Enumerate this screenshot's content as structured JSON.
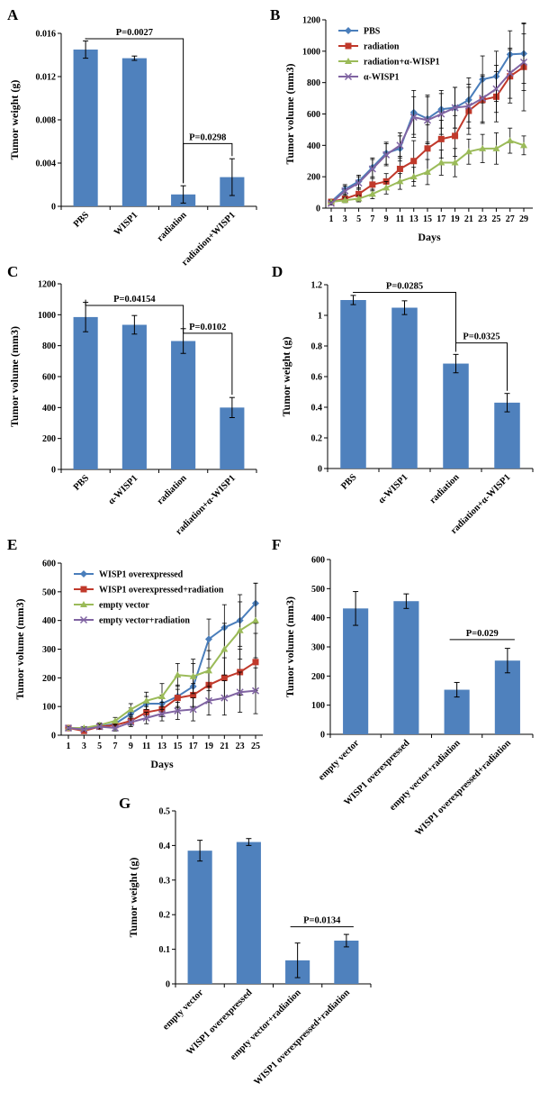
{
  "colors": {
    "bar": "#4f81bd",
    "blue": "#4a7ebb",
    "red": "#c0392b",
    "green": "#9bbb59",
    "purple": "#8064a2",
    "err": "#000000"
  },
  "chart_data": [
    {
      "id": "A",
      "type": "bar",
      "letter": "A",
      "ylabel": "Tumor weight (g)",
      "xlabel": "",
      "ylim": [
        0,
        0.016
      ],
      "yticks": [
        0,
        0.004,
        0.008,
        0.012,
        0.016
      ],
      "ytick_labels": [
        "0",
        "0.004",
        "0.008",
        "0.012",
        "0.016"
      ],
      "categories": [
        "PBS",
        "WISP1",
        "radiation",
        "radiation+WISP1"
      ],
      "values": [
        0.0145,
        0.0137,
        0.0011,
        0.0027
      ],
      "errors": [
        0.0008,
        0.0002,
        0.0008,
        0.0017
      ],
      "annotations": [
        {
          "label": "P=0.0027",
          "from": 0,
          "to": 2,
          "level": 0.0155
        },
        {
          "label": "P=0.0298",
          "from": 2,
          "to": 3,
          "level": 0.0058
        }
      ]
    },
    {
      "id": "B",
      "type": "line",
      "letter": "B",
      "ylabel": "Tumor volume (mm3)",
      "xlabel": "Days",
      "ylim": [
        0,
        1200
      ],
      "yticks": [
        0,
        200,
        400,
        600,
        800,
        1000,
        1200
      ],
      "ytick_labels": [
        "0",
        "200",
        "400",
        "600",
        "800",
        "1000",
        "1200"
      ],
      "x": [
        1,
        3,
        5,
        7,
        9,
        11,
        13,
        15,
        17,
        19,
        21,
        23,
        25,
        27,
        29
      ],
      "xtick_labels": [
        "1",
        "3",
        "5",
        "7",
        "9",
        "11",
        "13",
        "15",
        "17",
        "19",
        "21",
        "23",
        "25",
        "27",
        "29"
      ],
      "legend": [
        "PBS",
        "radiation",
        "radiation+α-WISP1",
        "α-WISP1"
      ],
      "series": [
        {
          "name": "PBS",
          "color": "#4a7ebb",
          "marker": "diamond",
          "values": [
            40,
            120,
            170,
            260,
            350,
            380,
            610,
            570,
            630,
            640,
            690,
            820,
            840,
            980,
            985
          ],
          "errors": [
            10,
            30,
            40,
            60,
            70,
            80,
            140,
            150,
            120,
            130,
            140,
            150,
            160,
            150,
            190
          ]
        },
        {
          "name": "radiation",
          "color": "#c0392b",
          "marker": "square",
          "values": [
            40,
            60,
            90,
            150,
            170,
            250,
            300,
            380,
            440,
            460,
            620,
            690,
            710,
            840,
            900
          ],
          "errors": [
            10,
            20,
            30,
            40,
            50,
            80,
            130,
            150,
            120,
            130,
            150,
            150,
            160,
            170,
            280
          ]
        },
        {
          "name": "radiation+α-WISP1",
          "color": "#9bbb59",
          "marker": "triangle",
          "values": [
            40,
            50,
            60,
            90,
            130,
            170,
            200,
            230,
            290,
            290,
            360,
            380,
            380,
            430,
            400
          ],
          "errors": [
            10,
            15,
            20,
            30,
            40,
            50,
            60,
            80,
            80,
            90,
            80,
            90,
            100,
            80,
            60
          ]
        },
        {
          "name": "α-WISP1",
          "color": "#8064a2",
          "marker": "x",
          "values": [
            30,
            110,
            160,
            250,
            340,
            400,
            580,
            560,
            600,
            640,
            650,
            700,
            760,
            860,
            930
          ],
          "errors": [
            10,
            30,
            40,
            60,
            70,
            80,
            130,
            150,
            130,
            130,
            140,
            150,
            150,
            160,
            180
          ]
        }
      ]
    },
    {
      "id": "C",
      "type": "bar",
      "letter": "C",
      "ylabel": "Tumor volume (mm3)",
      "xlabel": "",
      "ylim": [
        0,
        1200
      ],
      "yticks": [
        0,
        200,
        400,
        600,
        800,
        1000,
        1200
      ],
      "ytick_labels": [
        "0",
        "200",
        "400",
        "600",
        "800",
        "1000",
        "1200"
      ],
      "categories": [
        "PBS",
        "α-WISP1",
        "radiation",
        "radiation+α-WISP1"
      ],
      "values": [
        985,
        935,
        830,
        400
      ],
      "errors": [
        95,
        60,
        80,
        65
      ],
      "annotations": [
        {
          "label": "P=0.04154",
          "from": 0,
          "to": 2,
          "level": 1060
        },
        {
          "label": "P=0.0102",
          "from": 2,
          "to": 3,
          "level": 880
        }
      ]
    },
    {
      "id": "D",
      "type": "bar",
      "letter": "D",
      "ylabel": "Tumor weight (g)",
      "xlabel": "",
      "ylim": [
        0,
        1.2
      ],
      "yticks": [
        0,
        0.2,
        0.4,
        0.6,
        0.8,
        1.0,
        1.2
      ],
      "ytick_labels": [
        "0",
        "0.2",
        "0.4",
        "0.6",
        "0.8",
        "1",
        "1.2"
      ],
      "categories": [
        "PBS",
        "α-WISP1",
        "radiation",
        "radiation+α-WISP1"
      ],
      "values": [
        1.1,
        1.05,
        0.685,
        0.43
      ],
      "errors": [
        0.03,
        0.045,
        0.06,
        0.06
      ],
      "annotations": [
        {
          "label": "P=0.0285",
          "from": 0,
          "to": 2,
          "level": 1.15
        },
        {
          "label": "P=0.0325",
          "from": 2,
          "to": 3,
          "level": 0.82
        }
      ]
    },
    {
      "id": "E",
      "type": "line",
      "letter": "E",
      "ylabel": "Tumor volume (mm3)",
      "xlabel": "Days",
      "ylim": [
        0,
        600
      ],
      "yticks": [
        0,
        100,
        200,
        300,
        400,
        500,
        600
      ],
      "ytick_labels": [
        "0",
        "100",
        "200",
        "300",
        "400",
        "500",
        "600"
      ],
      "x": [
        1,
        3,
        5,
        7,
        9,
        11,
        13,
        15,
        17,
        19,
        21,
        23,
        25
      ],
      "xtick_labels": [
        "1",
        "3",
        "5",
        "7",
        "9",
        "11",
        "13",
        "15",
        "17",
        "19",
        "21",
        "23",
        "25"
      ],
      "legend": [
        "WISP1 overexpressed",
        "WISP1 overexpressed+radiation",
        "empty vector",
        "empty vector+radiation"
      ],
      "series": [
        {
          "name": "WISP1 overexpressed",
          "color": "#4a7ebb",
          "marker": "diamond",
          "values": [
            25,
            20,
            30,
            40,
            75,
            110,
            110,
            135,
            170,
            335,
            375,
            400,
            460
          ],
          "errors": [
            5,
            5,
            8,
            10,
            20,
            25,
            30,
            40,
            80,
            70,
            80,
            90,
            70
          ]
        },
        {
          "name": "WISP1 overexpressed+radiation",
          "color": "#c0392b",
          "marker": "square",
          "values": [
            25,
            15,
            30,
            35,
            50,
            80,
            90,
            130,
            140,
            175,
            200,
            220,
            255
          ],
          "errors": [
            5,
            5,
            8,
            10,
            15,
            20,
            25,
            30,
            40,
            60,
            70,
            80,
            100
          ]
        },
        {
          "name": "empty vector",
          "color": "#9bbb59",
          "marker": "triangle",
          "values": [
            25,
            25,
            35,
            50,
            90,
            120,
            135,
            210,
            205,
            225,
            300,
            365,
            400
          ],
          "errors": [
            5,
            5,
            8,
            12,
            20,
            30,
            45,
            40,
            60,
            70,
            90,
            100,
            130
          ]
        },
        {
          "name": "empty vector+radiation",
          "color": "#8064a2",
          "marker": "x",
          "values": [
            25,
            20,
            30,
            25,
            45,
            60,
            75,
            85,
            90,
            120,
            130,
            150,
            155
          ],
          "errors": [
            5,
            5,
            8,
            10,
            15,
            20,
            25,
            30,
            40,
            50,
            60,
            70,
            80
          ]
        }
      ]
    },
    {
      "id": "F",
      "type": "bar",
      "letter": "F",
      "ylabel": "Tumor volume (mm3)",
      "xlabel": "",
      "ylim": [
        0,
        600
      ],
      "yticks": [
        0,
        100,
        200,
        300,
        400,
        500,
        600
      ],
      "ytick_labels": [
        "0",
        "100",
        "200",
        "300",
        "400",
        "500",
        "600"
      ],
      "categories": [
        "empty vector",
        "WISP1 overexpressed",
        "empty vector+radiation",
        "WISP1 overexpressed+radiation"
      ],
      "values": [
        432,
        457,
        153,
        253
      ],
      "errors": [
        58,
        25,
        25,
        42
      ],
      "annotations": [
        {
          "label": "P=0.029",
          "from": 2,
          "to": 3,
          "level": 325,
          "style": "line"
        }
      ]
    },
    {
      "id": "G",
      "type": "bar",
      "letter": "G",
      "ylabel": "Tumor weight (g)",
      "xlabel": "",
      "ylim": [
        0,
        0.5
      ],
      "yticks": [
        0,
        0.1,
        0.2,
        0.3,
        0.4,
        0.5
      ],
      "ytick_labels": [
        "0",
        "0.1",
        "0.2",
        "0.3",
        "0.4",
        "0.5"
      ],
      "categories": [
        "empty vector",
        "WISP1 overexpressed",
        "empty vector+radiation",
        "WISP1 overexpressed+radiation"
      ],
      "values": [
        0.385,
        0.41,
        0.068,
        0.125
      ],
      "errors": [
        0.03,
        0.01,
        0.05,
        0.018
      ],
      "annotations": [
        {
          "label": "P=0.0134",
          "from": 2,
          "to": 3,
          "level": 0.165,
          "style": "line"
        }
      ]
    }
  ]
}
